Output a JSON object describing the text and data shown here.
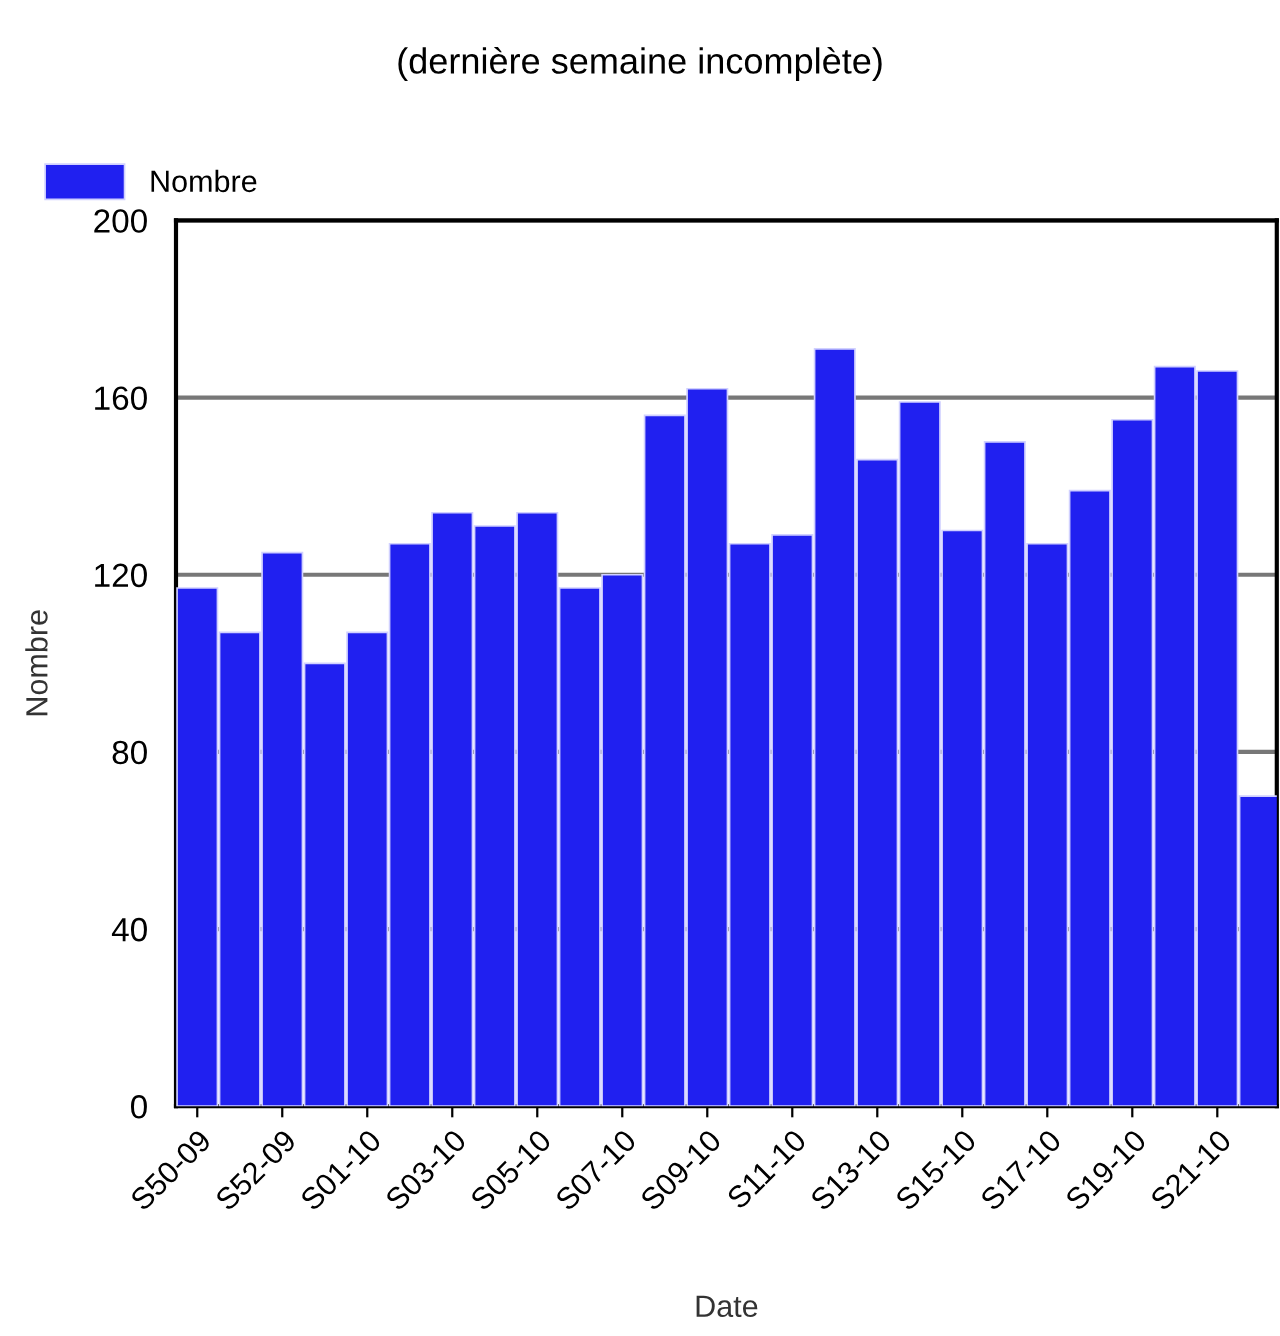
{
  "chart_data": {
    "type": "bar",
    "title": "(dernière semaine incomplète)",
    "xlabel": "Date",
    "ylabel": "Nombre",
    "categories": [
      "S50-09",
      null,
      "S52-09",
      null,
      "S01-10",
      null,
      "S03-10",
      null,
      "S05-10",
      null,
      "S07-10",
      null,
      "S09-10",
      null,
      "S11-10",
      null,
      "S13-10",
      null,
      "S15-10",
      null,
      "S17-10",
      null,
      "S19-10",
      null,
      "S21-10",
      null
    ],
    "series": [
      {
        "name": "Nombre",
        "color": "#2020f0",
        "values": [
          117,
          107,
          125,
          100,
          107,
          127,
          134,
          131,
          134,
          117,
          120,
          156,
          162,
          127,
          129,
          171,
          146,
          159,
          130,
          150,
          127,
          139,
          155,
          167,
          166,
          70
        ]
      }
    ],
    "ylim": [
      0,
      200
    ],
    "yticks": [
      0,
      40,
      80,
      120,
      160,
      200
    ],
    "grid": "y",
    "legend": "top left"
  }
}
